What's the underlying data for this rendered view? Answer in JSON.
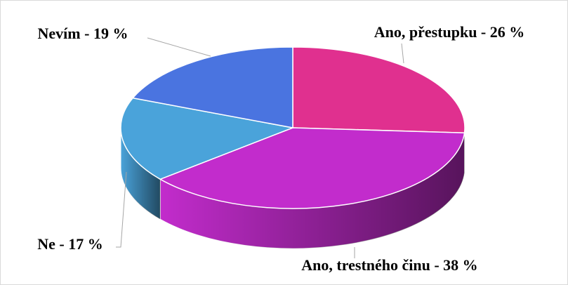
{
  "chart_data": {
    "type": "pie",
    "values": [
      26,
      38,
      17,
      19
    ],
    "value_labels": [
      "Ano, přestupku - 26 %",
      "Ano, trestného činu - 38 %",
      "Ne - 17 %",
      "Nevím - 19 %"
    ],
    "colors": [
      "#e0308f",
      "#c22ccc",
      "#4aa3da",
      "#4a74e0"
    ]
  }
}
